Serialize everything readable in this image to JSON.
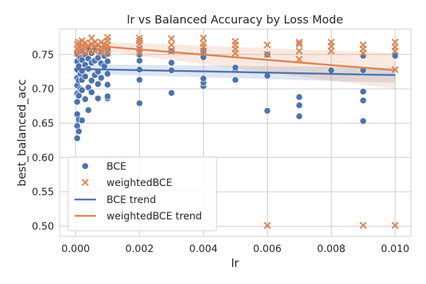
{
  "chart_data": {
    "type": "scatter",
    "title": "lr vs Balanced Accuracy by Loss Mode",
    "xlabel": "lr",
    "ylabel": "best_balanced_acc",
    "xlim": [
      -0.0005,
      0.0105
    ],
    "ylim": [
      0.485,
      0.787
    ],
    "xticks": [
      0.0,
      0.002,
      0.004,
      0.006,
      0.008,
      0.01
    ],
    "xtick_labels": [
      "0.000",
      "0.002",
      "0.004",
      "0.006",
      "0.008",
      "0.010"
    ],
    "yticks": [
      0.5,
      0.55,
      0.6,
      0.65,
      0.7,
      0.75
    ],
    "ytick_labels": [
      "0.50",
      "0.55",
      "0.60",
      "0.65",
      "0.70",
      "0.75"
    ],
    "grid": true,
    "legend_position": "lower-left",
    "series": [
      {
        "name": "BCE",
        "kind": "points",
        "marker": "circle",
        "color": "#4c72b0",
        "points": [
          [
            5e-05,
            0.628
          ],
          [
            5e-05,
            0.646
          ],
          [
            5e-05,
            0.663
          ],
          [
            5e-05,
            0.681
          ],
          [
            5e-05,
            0.693
          ],
          [
            5e-05,
            0.705
          ],
          [
            5e-05,
            0.716
          ],
          [
            5e-05,
            0.728
          ],
          [
            5e-05,
            0.74
          ],
          [
            5e-05,
            0.752
          ],
          [
            0.0001,
            0.638
          ],
          [
            0.0001,
            0.655
          ],
          [
            0.0001,
            0.69
          ],
          [
            0.0001,
            0.712
          ],
          [
            0.0001,
            0.733
          ],
          [
            0.0001,
            0.748
          ],
          [
            0.00015,
            0.7
          ],
          [
            0.00015,
            0.722
          ],
          [
            0.00015,
            0.745
          ],
          [
            0.00015,
            0.755
          ],
          [
            0.0002,
            0.654
          ],
          [
            0.0002,
            0.698
          ],
          [
            0.0002,
            0.713
          ],
          [
            0.0002,
            0.726
          ],
          [
            0.0002,
            0.742
          ],
          [
            0.0002,
            0.756
          ],
          [
            0.0003,
            0.685
          ],
          [
            0.0003,
            0.718
          ],
          [
            0.0003,
            0.735
          ],
          [
            0.0003,
            0.75
          ],
          [
            0.0004,
            0.669
          ],
          [
            0.0004,
            0.702
          ],
          [
            0.0004,
            0.729
          ],
          [
            0.0004,
            0.744
          ],
          [
            0.0004,
            0.758
          ],
          [
            0.0005,
            0.695
          ],
          [
            0.0005,
            0.712
          ],
          [
            0.0005,
            0.738
          ],
          [
            0.0005,
            0.752
          ],
          [
            0.0006,
            0.72
          ],
          [
            0.0006,
            0.741
          ],
          [
            0.0006,
            0.757
          ],
          [
            0.0007,
            0.686
          ],
          [
            0.0007,
            0.707
          ],
          [
            0.0007,
            0.725
          ],
          [
            0.0007,
            0.745
          ],
          [
            0.0008,
            0.716
          ],
          [
            0.0008,
            0.737
          ],
          [
            0.0008,
            0.753
          ],
          [
            0.0009,
            0.733
          ],
          [
            0.0009,
            0.748
          ],
          [
            0.0009,
            0.76
          ],
          [
            0.001,
            0.686
          ],
          [
            0.001,
            0.689
          ],
          [
            0.001,
            0.706
          ],
          [
            0.001,
            0.722
          ],
          [
            0.001,
            0.74
          ],
          [
            0.001,
            0.751
          ],
          [
            0.001,
            0.757
          ],
          [
            0.002,
            0.679
          ],
          [
            0.002,
            0.713
          ],
          [
            0.002,
            0.728
          ],
          [
            0.002,
            0.741
          ],
          [
            0.002,
            0.75
          ],
          [
            0.002,
            0.757
          ],
          [
            0.003,
            0.694
          ],
          [
            0.003,
            0.727
          ],
          [
            0.003,
            0.738
          ],
          [
            0.003,
            0.755
          ],
          [
            0.004,
            0.704
          ],
          [
            0.004,
            0.709
          ],
          [
            0.004,
            0.715
          ],
          [
            0.004,
            0.746
          ],
          [
            0.004,
            0.755
          ],
          [
            0.005,
            0.713
          ],
          [
            0.005,
            0.728
          ],
          [
            0.005,
            0.731
          ],
          [
            0.006,
            0.668
          ],
          [
            0.006,
            0.719
          ],
          [
            0.006,
            0.75
          ],
          [
            0.007,
            0.66
          ],
          [
            0.007,
            0.676
          ],
          [
            0.007,
            0.688
          ],
          [
            0.008,
            0.727
          ],
          [
            0.009,
            0.653
          ],
          [
            0.009,
            0.683
          ],
          [
            0.009,
            0.696
          ],
          [
            0.009,
            0.727
          ],
          [
            0.009,
            0.748
          ],
          [
            0.01,
            0.748
          ]
        ]
      },
      {
        "name": "weightedBCE",
        "kind": "points",
        "marker": "x",
        "color": "#dd8452",
        "points": [
          [
            5e-05,
            0.752
          ],
          [
            5e-05,
            0.758
          ],
          [
            5e-05,
            0.765
          ],
          [
            0.0001,
            0.755
          ],
          [
            0.0001,
            0.762
          ],
          [
            0.0001,
            0.768
          ],
          [
            0.0002,
            0.757
          ],
          [
            0.0002,
            0.763
          ],
          [
            0.0002,
            0.77
          ],
          [
            0.0003,
            0.752
          ],
          [
            0.0003,
            0.76
          ],
          [
            0.0003,
            0.767
          ],
          [
            0.0004,
            0.755
          ],
          [
            0.0004,
            0.763
          ],
          [
            0.0005,
            0.758
          ],
          [
            0.0005,
            0.765
          ],
          [
            0.0005,
            0.774
          ],
          [
            0.0006,
            0.755
          ],
          [
            0.0006,
            0.762
          ],
          [
            0.0006,
            0.768
          ],
          [
            0.0007,
            0.757
          ],
          [
            0.0007,
            0.764
          ],
          [
            0.0008,
            0.753
          ],
          [
            0.0008,
            0.76
          ],
          [
            0.0008,
            0.768
          ],
          [
            0.0009,
            0.758
          ],
          [
            0.0009,
            0.765
          ],
          [
            0.001,
            0.752
          ],
          [
            0.001,
            0.758
          ],
          [
            0.001,
            0.764
          ],
          [
            0.001,
            0.77
          ],
          [
            0.001,
            0.775
          ],
          [
            0.002,
            0.752
          ],
          [
            0.002,
            0.758
          ],
          [
            0.002,
            0.765
          ],
          [
            0.002,
            0.77
          ],
          [
            0.002,
            0.774
          ],
          [
            0.003,
            0.755
          ],
          [
            0.003,
            0.764
          ],
          [
            0.003,
            0.773
          ],
          [
            0.004,
            0.755
          ],
          [
            0.004,
            0.761
          ],
          [
            0.004,
            0.766
          ],
          [
            0.004,
            0.774
          ],
          [
            0.005,
            0.752
          ],
          [
            0.005,
            0.758
          ],
          [
            0.005,
            0.764
          ],
          [
            0.005,
            0.769
          ],
          [
            0.006,
            0.75
          ],
          [
            0.006,
            0.764
          ],
          [
            0.006,
            0.501
          ],
          [
            0.007,
            0.743
          ],
          [
            0.007,
            0.755
          ],
          [
            0.007,
            0.765
          ],
          [
            0.007,
            0.768
          ],
          [
            0.008,
            0.755
          ],
          [
            0.008,
            0.762
          ],
          [
            0.008,
            0.768
          ],
          [
            0.009,
            0.752
          ],
          [
            0.009,
            0.758
          ],
          [
            0.009,
            0.764
          ],
          [
            0.009,
            0.501
          ],
          [
            0.01,
            0.728
          ],
          [
            0.01,
            0.755
          ],
          [
            0.01,
            0.761
          ],
          [
            0.01,
            0.768
          ],
          [
            0.01,
            0.501
          ]
        ]
      },
      {
        "name": "BCE trend",
        "kind": "line",
        "color": "#4c72b0",
        "x": [
          0.0,
          0.01
        ],
        "y": [
          0.729,
          0.72
        ],
        "ci_lower": [
          0.722,
          0.709
        ],
        "ci_upper": [
          0.736,
          0.731
        ]
      },
      {
        "name": "weightedBCE trend",
        "kind": "line",
        "color": "#dd8452",
        "x": [
          0.0,
          0.01
        ],
        "y": [
          0.765,
          0.727
        ],
        "ci_lower": [
          0.76,
          0.7
        ],
        "ci_upper": [
          0.77,
          0.752
        ]
      }
    ]
  }
}
